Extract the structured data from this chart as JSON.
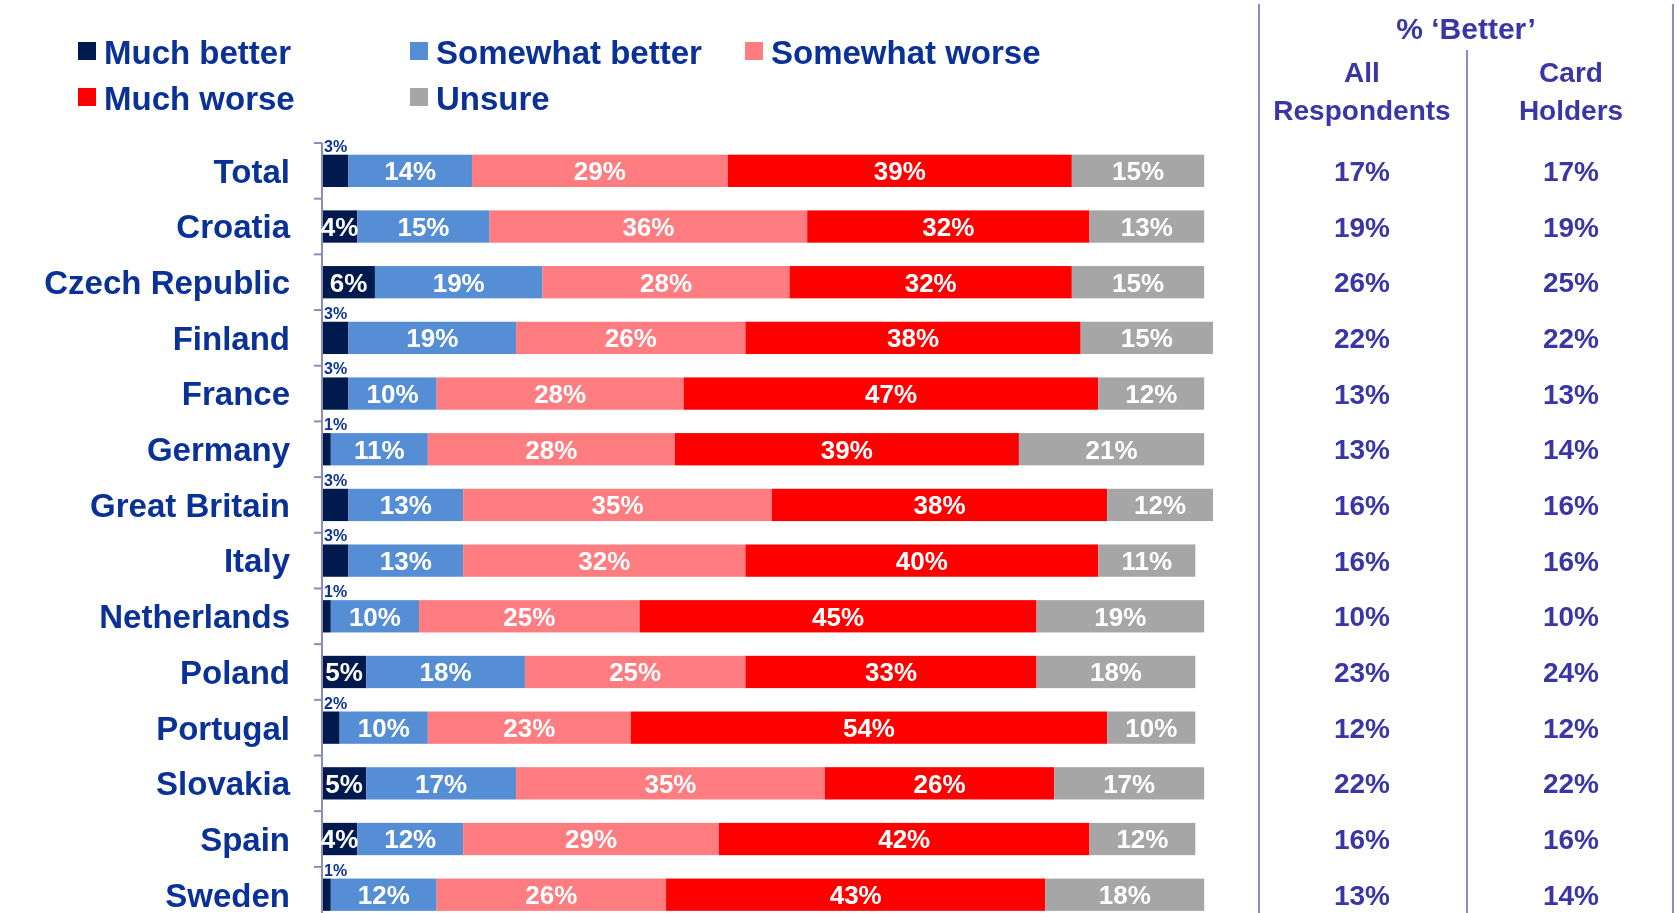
{
  "chart_data": [
    {
      "type": "bar",
      "orientation": "horizontal",
      "stacked": true,
      "legend": "top left",
      "grid": false,
      "categories": [
        "Total",
        "Croatia",
        "Czech Republic",
        "Finland",
        "France",
        "Germany",
        "Great Britain",
        "Italy",
        "Netherlands",
        "Poland",
        "Portugal",
        "Slovakia",
        "Spain",
        "Sweden"
      ],
      "series": [
        {
          "name": "Much better",
          "color": "#001a4d",
          "values": [
            3,
            4,
            6,
            3,
            3,
            1,
            3,
            3,
            1,
            5,
            2,
            5,
            4,
            1
          ],
          "value_labels": [
            "3%",
            "4%",
            "6%",
            "3%",
            "3%",
            "1%",
            "3%",
            "3%",
            "1%",
            "5%",
            "2%",
            "5%",
            "4%",
            "1%"
          ]
        },
        {
          "name": "Somewhat better",
          "color": "#558ed5",
          "values": [
            14,
            15,
            19,
            19,
            10,
            11,
            13,
            13,
            10,
            18,
            10,
            17,
            12,
            12
          ],
          "value_labels": [
            "14%",
            "15%",
            "19%",
            "19%",
            "10%",
            "11%",
            "13%",
            "13%",
            "10%",
            "18%",
            "10%",
            "17%",
            "12%",
            "12%"
          ]
        },
        {
          "name": "Somewhat worse",
          "color": "#ff7c80",
          "values": [
            29,
            36,
            28,
            26,
            28,
            28,
            35,
            32,
            25,
            25,
            23,
            35,
            29,
            26
          ],
          "value_labels": [
            "29%",
            "36%",
            "28%",
            "26%",
            "28%",
            "28%",
            "35%",
            "32%",
            "25%",
            "25%",
            "23%",
            "35%",
            "29%",
            "26%"
          ]
        },
        {
          "name": "Much worse",
          "color": "#ff0000",
          "values": [
            39,
            32,
            32,
            38,
            47,
            39,
            38,
            40,
            45,
            33,
            54,
            26,
            42,
            43
          ],
          "value_labels": [
            "39%",
            "32%",
            "32%",
            "38%",
            "47%",
            "39%",
            "38%",
            "40%",
            "45%",
            "33%",
            "54%",
            "26%",
            "42%",
            "43%"
          ]
        },
        {
          "name": "Unsure",
          "color": "#a6a6a6",
          "values": [
            15,
            13,
            15,
            15,
            12,
            21,
            12,
            11,
            19,
            18,
            10,
            17,
            12,
            18
          ],
          "value_labels": [
            "15%",
            "13%",
            "15%",
            "15%",
            "12%",
            "21%",
            "12%",
            "11%",
            "19%",
            "18%",
            "10%",
            "17%",
            "12%",
            "18%"
          ]
        }
      ]
    },
    {
      "type": "other",
      "title": "% ‘Better’",
      "annotations": [
        "All Respondents",
        "Card Holders",
        "17%",
        "17%",
        "19%",
        "19%",
        "26%",
        "25%",
        "22%",
        "22%",
        "13%",
        "13%",
        "13%",
        "14%",
        "16%",
        "16%",
        "16%",
        "16%",
        "10%",
        "10%",
        "23%",
        "24%",
        "12%",
        "12%",
        "22%",
        "22%",
        "16%",
        "16%",
        "13%",
        "14%"
      ]
    }
  ]
}
